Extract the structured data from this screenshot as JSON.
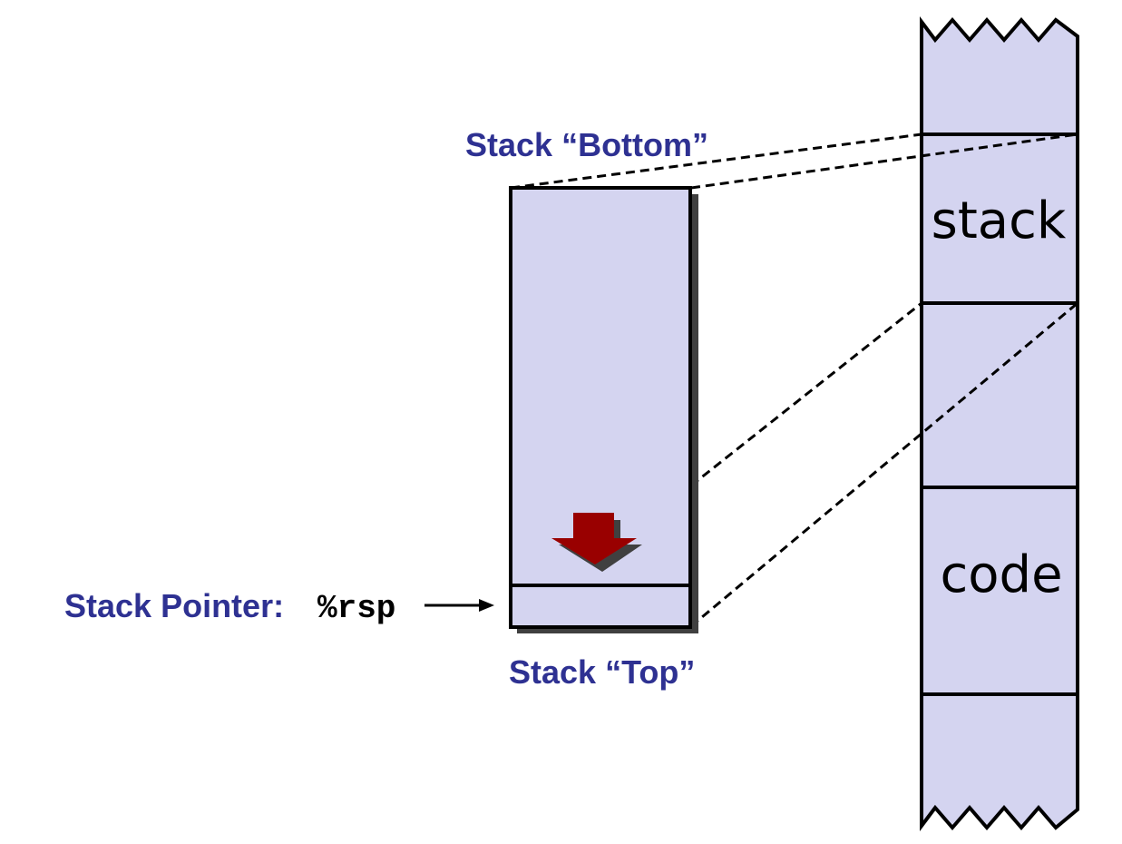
{
  "labels": {
    "stack_bottom": "Stack “Bottom”",
    "stack_top": "Stack “Top”",
    "stack_pointer_prefix": "Stack Pointer: ",
    "stack_pointer_register": "%rsp"
  },
  "memory_segments": {
    "stack": "stack",
    "code": "code"
  },
  "colors": {
    "fill": "#d4d4f0",
    "label": "#2e3192",
    "arrow": "#990000",
    "arrow_shadow": "#404040"
  }
}
